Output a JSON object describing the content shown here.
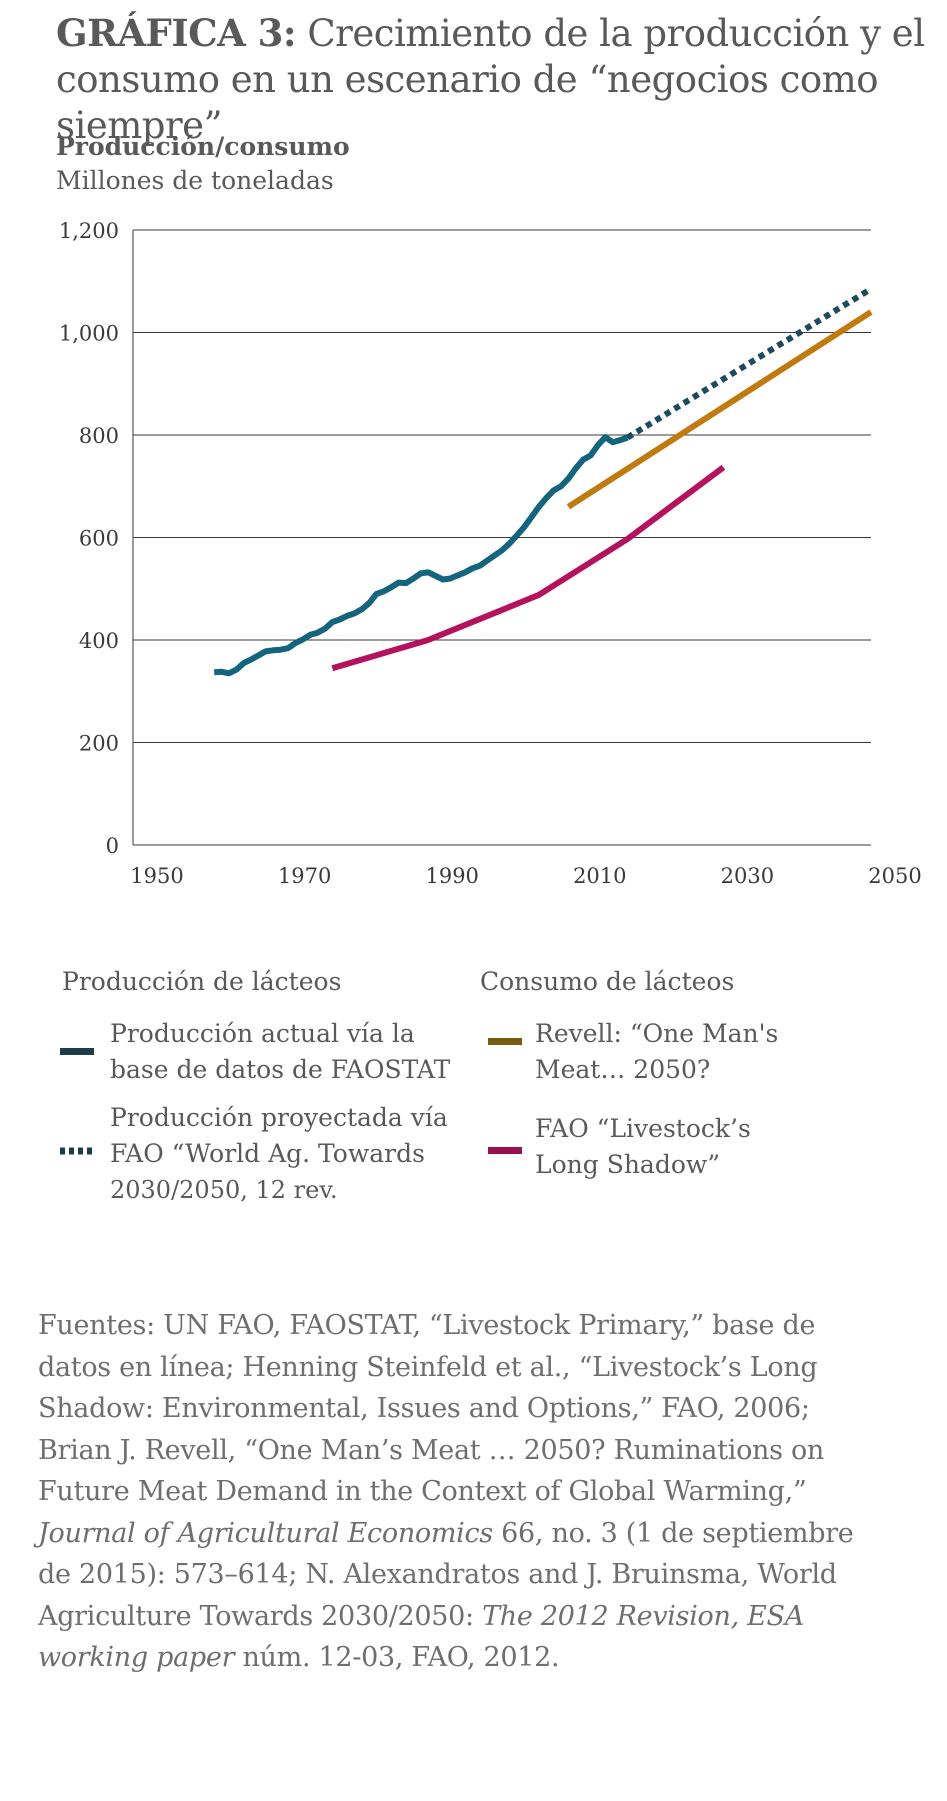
{
  "title": {
    "lead": "GRÁFICA 3:",
    "text": "Crecimiento de la producción y el consumo en un escenario de “negocios como siempre”"
  },
  "axis_title": {
    "line1": "Producción/consumo",
    "line2": "Millones de toneladas"
  },
  "legend": {
    "production_heading": "Producción de lácteos",
    "consumption_heading": "Consumo de lácteos",
    "items": {
      "actual_line1": "Producción actual vía la",
      "actual_line2": "base de datos de FAOSTAT",
      "projected_line1": "Producción proyectada vía",
      "projected_line2": "FAO “World Ag. Towards",
      "projected_line3": "2030/2050, 12 rev.",
      "revell_line1": "Revell: “One Man's",
      "revell_line2": "Meat… 2050?",
      "fao_line1": "FAO “Livestock’s",
      "fao_line2": "Long Shadow”"
    }
  },
  "sources": {
    "line1": "Fuentes: UN FAO, FAOSTAT, “Livestock Primary,” base de",
    "line2": "datos en línea; Henning Steinfeld et al., “Livestock’s Long",
    "line3": "Shadow: Environmental, Issues and Options,” FAO, 2006;",
    "line4": "Brian J. Revell, “One Man’s Meat … 2050? Ruminations on",
    "line5": "Future Meat Demand in the Context of Global Warming,”",
    "line6_italic": "Journal of Agricultural Economics",
    "line6_rest": " 66, no. 3 (1 de septiembre",
    "line7": "de 2015): 573–614; N. Alexandratos and J. Bruinsma, World",
    "line8_plain": "Agriculture Towards 2030/2050: ",
    "line8_italic": "The 2012 Revision, ESA",
    "line9_italic": "working paper",
    "line9_rest": " núm. 12-03, FAO, 2012."
  },
  "chart_data": {
    "type": "line",
    "xlim": [
      1950,
      2050
    ],
    "ylim": [
      0,
      1200
    ],
    "x_ticks": [
      "1950",
      "1970",
      "1990",
      "2010",
      "2030",
      "2050"
    ],
    "x_tick_values": [
      1950,
      1970,
      1990,
      2010,
      2030,
      2050
    ],
    "y_ticks": [
      "0",
      "200",
      "400",
      "600",
      "800",
      "1,000",
      "1,200"
    ],
    "y_tick_values": [
      0,
      200,
      400,
      600,
      800,
      1000,
      1200
    ],
    "grid": "horizontal",
    "series": [
      {
        "name": "Producción actual vía la base de datos de FAOSTAT",
        "color": "#14647d",
        "style": "solid",
        "x": [
          1961,
          1962,
          1963,
          1964,
          1965,
          1966,
          1967,
          1968,
          1969,
          1970,
          1971,
          1972,
          1973,
          1974,
          1975,
          1976,
          1977,
          1978,
          1979,
          1980,
          1981,
          1982,
          1983,
          1984,
          1985,
          1986,
          1987,
          1988,
          1989,
          1990,
          1991,
          1992,
          1993,
          1994,
          1995,
          1996,
          1997,
          1998,
          1999,
          2000,
          2001,
          2002,
          2003,
          2004,
          2005,
          2006,
          2007,
          2008,
          2009,
          2010,
          2011,
          2012,
          2013,
          2014,
          2015,
          2016,
          2017
        ],
        "y": [
          337,
          338,
          335,
          342,
          355,
          362,
          370,
          378,
          380,
          381,
          384,
          394,
          401,
          410,
          414,
          422,
          435,
          440,
          447,
          452,
          460,
          472,
          490,
          495,
          503,
          512,
          511,
          520,
          530,
          532,
          525,
          518,
          520,
          526,
          532,
          540,
          545,
          555,
          565,
          575,
          588,
          604,
          620,
          640,
          660,
          677,
          692,
          700,
          715,
          735,
          752,
          760,
          780,
          796,
          786,
          790,
          795
        ],
        "y_digitized_note": ""
      },
      {
        "name": "Producción proyectada vía FAO “World Ag. Towards 2030/2050, 12 rev.",
        "color": "#1d4a5c",
        "style": "dotted",
        "x": [
          2017,
          2050
        ],
        "y": [
          795,
          1085
        ]
      },
      {
        "name": "Revell: “One Man's Meat… 2050?",
        "color": "#c07a10",
        "style": "solid",
        "x": [
          2009,
          2050
        ],
        "y": [
          660,
          1040
        ]
      },
      {
        "name": "FAO “Livestock’s Long Shadow”",
        "color": "#b5125e",
        "style": "solid",
        "x": [
          1977,
          1990,
          2005,
          2017,
          2030
        ],
        "y": [
          345,
          400,
          488,
          597,
          737
        ]
      }
    ]
  }
}
